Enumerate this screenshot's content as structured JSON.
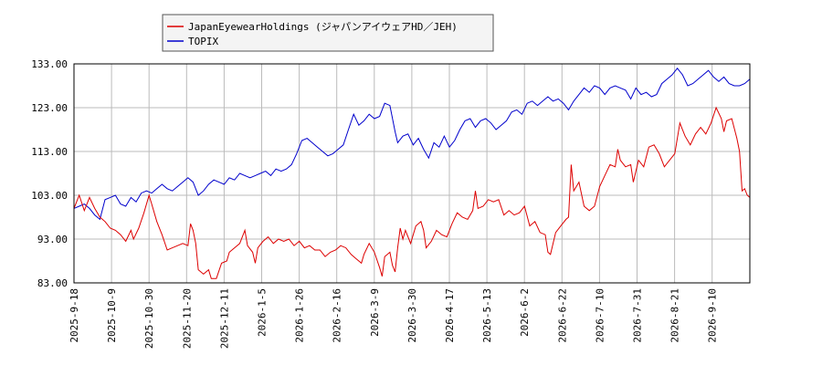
{
  "chart_data": {
    "type": "line",
    "title": "",
    "xlabel": "",
    "ylabel": "",
    "ylim": [
      83,
      133
    ],
    "y_ticks": [
      "83.00",
      "93.00",
      "103.00",
      "113.00",
      "123.00",
      "133.00"
    ],
    "x_ticks": [
      "2025-9-18",
      "2025-10-9",
      "2025-10-30",
      "2025-11-20",
      "2025-12-11",
      "2026-1-5",
      "2026-1-26",
      "2026-2-16",
      "2026-3-9",
      "2026-3-30",
      "2026-4-17",
      "2026-5-13",
      "2026-6-2",
      "2026-6-22",
      "2026-7-10",
      "2026-7-31",
      "2026-8-21",
      "2026-9-10"
    ],
    "grid": true,
    "legend_position": "top-left",
    "series": [
      {
        "name": "JapanEyewearHoldings (ジャパンアイウェアHD／JEH)",
        "color": "#dd0000",
        "points": [
          [
            0,
            100.0
          ],
          [
            2,
            103.0
          ],
          [
            4,
            99.5
          ],
          [
            6,
            102.5
          ],
          [
            8,
            100.0
          ],
          [
            10,
            98.0
          ],
          [
            12,
            97.0
          ],
          [
            14,
            95.5
          ],
          [
            16,
            95.0
          ],
          [
            18,
            94.0
          ],
          [
            20,
            92.5
          ],
          [
            22,
            95.0
          ],
          [
            23,
            93.0
          ],
          [
            25,
            95.5
          ],
          [
            27,
            99.0
          ],
          [
            29,
            103.0
          ],
          [
            30,
            101.0
          ],
          [
            32,
            97.0
          ],
          [
            34,
            94.0
          ],
          [
            36,
            90.5
          ],
          [
            38,
            91.0
          ],
          [
            40,
            91.5
          ],
          [
            42,
            92.0
          ],
          [
            44,
            91.5
          ],
          [
            45,
            96.5
          ],
          [
            46,
            95.0
          ],
          [
            47,
            92.0
          ],
          [
            48,
            86.0
          ],
          [
            50,
            85.0
          ],
          [
            52,
            86.0
          ],
          [
            53,
            84.0
          ],
          [
            55,
            84.0
          ],
          [
            57,
            87.5
          ],
          [
            59,
            88.0
          ],
          [
            60,
            90.0
          ],
          [
            62,
            91.0
          ],
          [
            64,
            92.0
          ],
          [
            66,
            95.0
          ],
          [
            67,
            91.5
          ],
          [
            69,
            90.0
          ],
          [
            70,
            87.5
          ],
          [
            71,
            91.0
          ],
          [
            73,
            92.5
          ],
          [
            75,
            93.5
          ],
          [
            77,
            92.0
          ],
          [
            79,
            93.0
          ],
          [
            81,
            92.5
          ],
          [
            83,
            93.0
          ],
          [
            85,
            91.5
          ],
          [
            87,
            92.5
          ],
          [
            89,
            91.0
          ],
          [
            91,
            91.5
          ],
          [
            93,
            90.5
          ],
          [
            95,
            90.5
          ],
          [
            97,
            89.0
          ],
          [
            99,
            90.0
          ],
          [
            101,
            90.5
          ],
          [
            103,
            91.5
          ],
          [
            105,
            91.0
          ],
          [
            107,
            89.5
          ],
          [
            109,
            88.5
          ],
          [
            111,
            87.5
          ],
          [
            112,
            89.5
          ],
          [
            114,
            92.0
          ],
          [
            116,
            90.0
          ],
          [
            118,
            86.5
          ],
          [
            119,
            84.5
          ],
          [
            120,
            89.0
          ],
          [
            122,
            90.0
          ],
          [
            123,
            87.0
          ],
          [
            124,
            85.5
          ],
          [
            125,
            91.0
          ],
          [
            126,
            95.5
          ],
          [
            127,
            93.0
          ],
          [
            128,
            95.0
          ],
          [
            130,
            92.0
          ],
          [
            132,
            96.0
          ],
          [
            134,
            97.0
          ],
          [
            135,
            95.0
          ],
          [
            136,
            91.0
          ],
          [
            138,
            92.5
          ],
          [
            140,
            95.0
          ],
          [
            142,
            94.0
          ],
          [
            144,
            93.5
          ],
          [
            146,
            96.5
          ],
          [
            148,
            99.0
          ],
          [
            150,
            98.0
          ],
          [
            152,
            97.5
          ],
          [
            154,
            99.5
          ],
          [
            155,
            104.0
          ],
          [
            156,
            100.0
          ],
          [
            158,
            100.5
          ],
          [
            160,
            102.0
          ],
          [
            162,
            101.5
          ],
          [
            164,
            102.0
          ],
          [
            166,
            98.5
          ],
          [
            168,
            99.5
          ],
          [
            170,
            98.5
          ],
          [
            172,
            99.0
          ],
          [
            174,
            100.5
          ],
          [
            176,
            96.0
          ],
          [
            178,
            97.0
          ],
          [
            180,
            94.5
          ],
          [
            182,
            94.0
          ],
          [
            183,
            90.0
          ],
          [
            184,
            89.5
          ],
          [
            186,
            94.5
          ],
          [
            188,
            96.0
          ],
          [
            190,
            97.5
          ],
          [
            191,
            98.0
          ],
          [
            192,
            110.0
          ],
          [
            193,
            104.0
          ],
          [
            195,
            106.0
          ],
          [
            197,
            100.5
          ],
          [
            199,
            99.5
          ],
          [
            201,
            100.5
          ],
          [
            203,
            105.0
          ],
          [
            205,
            107.5
          ],
          [
            207,
            110.0
          ],
          [
            209,
            109.5
          ],
          [
            210,
            113.5
          ],
          [
            211,
            111.0
          ],
          [
            213,
            109.5
          ],
          [
            215,
            110.0
          ],
          [
            216,
            106.0
          ],
          [
            218,
            111.0
          ],
          [
            220,
            109.5
          ],
          [
            222,
            114.0
          ],
          [
            224,
            114.5
          ],
          [
            226,
            112.5
          ],
          [
            228,
            109.5
          ],
          [
            230,
            111.0
          ],
          [
            232,
            112.5
          ],
          [
            234,
            119.5
          ],
          [
            236,
            116.5
          ],
          [
            238,
            114.5
          ],
          [
            240,
            117.0
          ],
          [
            242,
            118.5
          ],
          [
            244,
            117.0
          ],
          [
            246,
            119.5
          ],
          [
            248,
            123.0
          ],
          [
            250,
            120.5
          ],
          [
            251,
            117.5
          ],
          [
            252,
            120.0
          ],
          [
            254,
            120.5
          ],
          [
            256,
            116.0
          ],
          [
            257,
            113.0
          ],
          [
            258,
            104.0
          ],
          [
            259,
            104.5
          ],
          [
            260,
            103.0
          ],
          [
            261,
            102.5
          ]
        ]
      },
      {
        "name": "TOPIX",
        "color": "#0000cc",
        "points": [
          [
            0,
            100.0
          ],
          [
            2,
            100.5
          ],
          [
            4,
            101.0
          ],
          [
            6,
            100.0
          ],
          [
            8,
            98.5
          ],
          [
            10,
            97.5
          ],
          [
            12,
            102.0
          ],
          [
            14,
            102.5
          ],
          [
            16,
            103.0
          ],
          [
            18,
            101.0
          ],
          [
            20,
            100.5
          ],
          [
            22,
            102.5
          ],
          [
            24,
            101.5
          ],
          [
            26,
            103.5
          ],
          [
            28,
            104.0
          ],
          [
            30,
            103.5
          ],
          [
            32,
            104.5
          ],
          [
            34,
            105.5
          ],
          [
            36,
            104.5
          ],
          [
            38,
            104.0
          ],
          [
            40,
            105.0
          ],
          [
            42,
            106.0
          ],
          [
            44,
            107.0
          ],
          [
            46,
            106.0
          ],
          [
            48,
            103.0
          ],
          [
            50,
            104.0
          ],
          [
            52,
            105.5
          ],
          [
            54,
            106.5
          ],
          [
            56,
            106.0
          ],
          [
            58,
            105.5
          ],
          [
            60,
            107.0
          ],
          [
            62,
            106.5
          ],
          [
            64,
            108.0
          ],
          [
            66,
            107.5
          ],
          [
            68,
            107.0
          ],
          [
            70,
            107.5
          ],
          [
            72,
            108.0
          ],
          [
            74,
            108.5
          ],
          [
            76,
            107.5
          ],
          [
            78,
            109.0
          ],
          [
            80,
            108.5
          ],
          [
            82,
            109.0
          ],
          [
            84,
            110.0
          ],
          [
            86,
            112.5
          ],
          [
            88,
            115.5
          ],
          [
            90,
            116.0
          ],
          [
            92,
            115.0
          ],
          [
            94,
            114.0
          ],
          [
            96,
            113.0
          ],
          [
            98,
            112.0
          ],
          [
            100,
            112.5
          ],
          [
            102,
            113.5
          ],
          [
            104,
            114.5
          ],
          [
            106,
            118.0
          ],
          [
            108,
            121.5
          ],
          [
            110,
            119.0
          ],
          [
            112,
            120.0
          ],
          [
            114,
            121.5
          ],
          [
            116,
            120.5
          ],
          [
            118,
            121.0
          ],
          [
            120,
            124.0
          ],
          [
            122,
            123.5
          ],
          [
            124,
            117.5
          ],
          [
            125,
            115.0
          ],
          [
            127,
            116.5
          ],
          [
            129,
            117.0
          ],
          [
            131,
            114.5
          ],
          [
            133,
            116.0
          ],
          [
            135,
            113.5
          ],
          [
            137,
            111.5
          ],
          [
            139,
            115.0
          ],
          [
            141,
            114.0
          ],
          [
            143,
            116.5
          ],
          [
            145,
            114.0
          ],
          [
            147,
            115.5
          ],
          [
            149,
            118.0
          ],
          [
            151,
            120.0
          ],
          [
            153,
            120.5
          ],
          [
            155,
            118.5
          ],
          [
            157,
            120.0
          ],
          [
            159,
            120.5
          ],
          [
            161,
            119.5
          ],
          [
            163,
            118.0
          ],
          [
            165,
            119.0
          ],
          [
            167,
            120.0
          ],
          [
            169,
            122.0
          ],
          [
            171,
            122.5
          ],
          [
            173,
            121.5
          ],
          [
            175,
            124.0
          ],
          [
            177,
            124.5
          ],
          [
            179,
            123.5
          ],
          [
            181,
            124.5
          ],
          [
            183,
            125.5
          ],
          [
            185,
            124.5
          ],
          [
            187,
            125.0
          ],
          [
            189,
            124.0
          ],
          [
            191,
            122.5
          ],
          [
            193,
            124.5
          ],
          [
            195,
            126.0
          ],
          [
            197,
            127.5
          ],
          [
            199,
            126.5
          ],
          [
            201,
            128.0
          ],
          [
            203,
            127.5
          ],
          [
            205,
            126.0
          ],
          [
            207,
            127.5
          ],
          [
            209,
            128.0
          ],
          [
            211,
            127.5
          ],
          [
            213,
            127.0
          ],
          [
            215,
            125.0
          ],
          [
            217,
            127.5
          ],
          [
            219,
            126.0
          ],
          [
            221,
            126.5
          ],
          [
            223,
            125.5
          ],
          [
            225,
            126.0
          ],
          [
            227,
            128.5
          ],
          [
            229,
            129.5
          ],
          [
            231,
            130.5
          ],
          [
            233,
            132.0
          ],
          [
            235,
            130.5
          ],
          [
            237,
            128.0
          ],
          [
            239,
            128.5
          ],
          [
            241,
            129.5
          ],
          [
            243,
            130.5
          ],
          [
            245,
            131.5
          ],
          [
            247,
            130.0
          ],
          [
            249,
            129.0
          ],
          [
            251,
            130.0
          ],
          [
            253,
            128.5
          ],
          [
            255,
            128.0
          ],
          [
            257,
            128.0
          ],
          [
            259,
            128.5
          ],
          [
            261,
            129.5
          ]
        ]
      }
    ]
  }
}
